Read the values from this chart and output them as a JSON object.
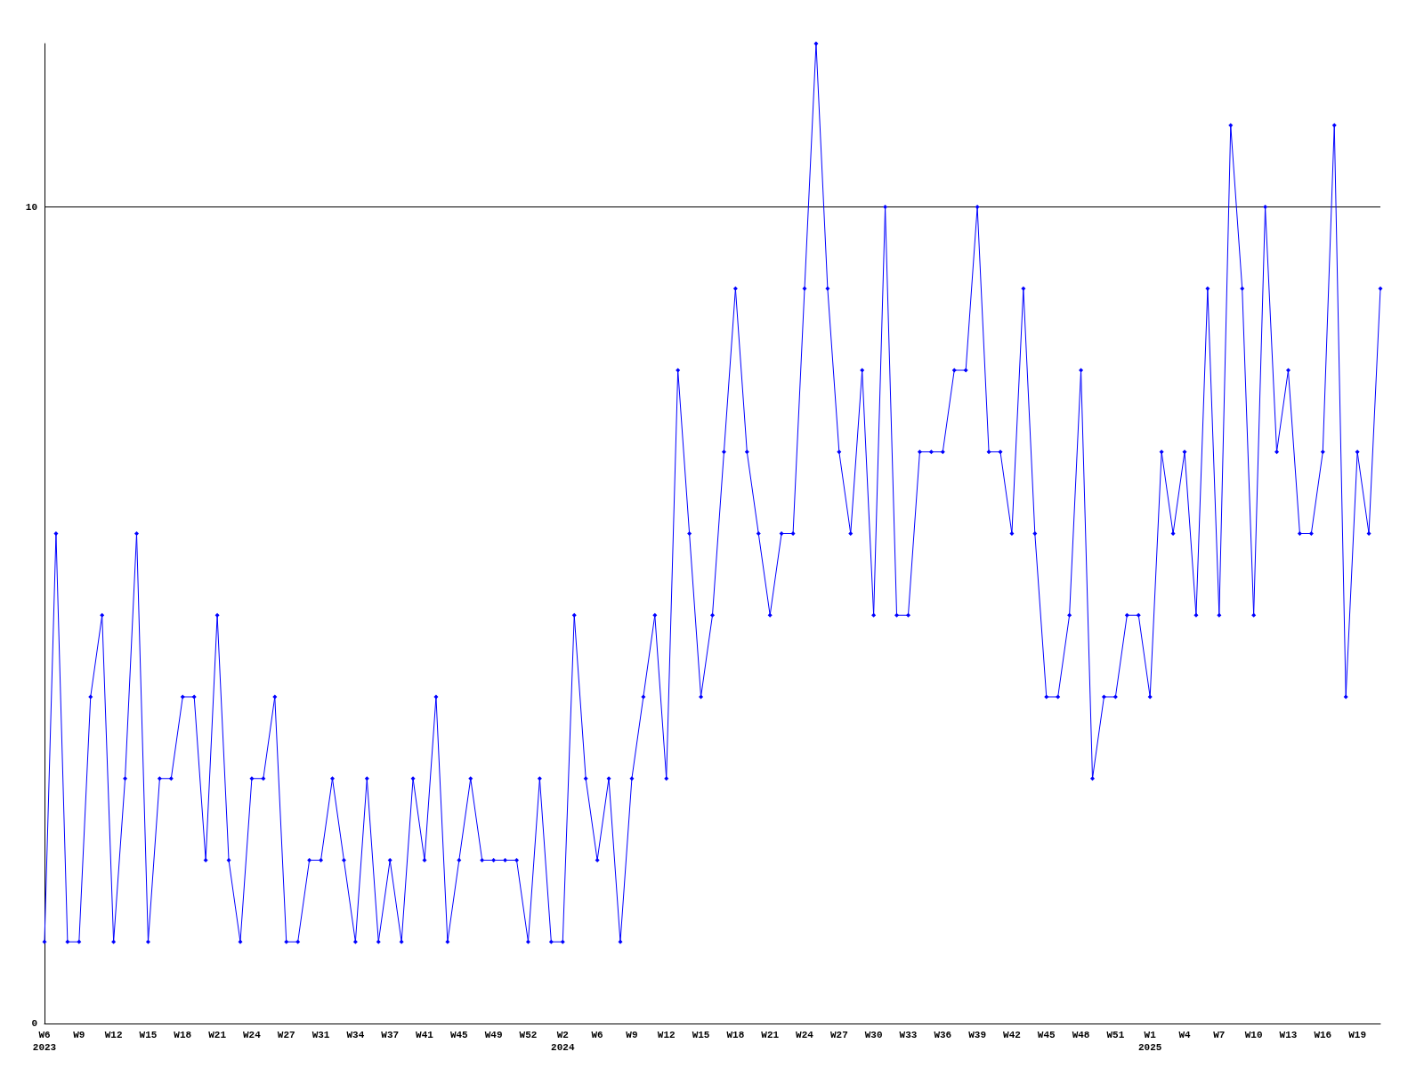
{
  "chart_data": {
    "type": "line",
    "categories": [
      "W6\n2023",
      null,
      null,
      "W9",
      null,
      null,
      "W12",
      null,
      null,
      "W15",
      null,
      null,
      "W18",
      null,
      null,
      "W21",
      null,
      null,
      "W24",
      null,
      null,
      "W27",
      null,
      null,
      "W31",
      null,
      null,
      "W34",
      null,
      null,
      "W37",
      null,
      null,
      "W41",
      null,
      null,
      "W45",
      null,
      null,
      "W49",
      null,
      null,
      "W52",
      null,
      null,
      "W2\n2024",
      null,
      null,
      "W6",
      null,
      null,
      "W9",
      null,
      null,
      "W12",
      null,
      null,
      "W15",
      null,
      null,
      "W18",
      null,
      null,
      "W21",
      null,
      null,
      "W24",
      null,
      null,
      "W27",
      null,
      null,
      "W30",
      null,
      null,
      "W33",
      null,
      null,
      "W36",
      null,
      null,
      "W39",
      null,
      null,
      "W42",
      null,
      null,
      "W45",
      null,
      null,
      "W48",
      null,
      null,
      "W51",
      null,
      null,
      "W1\n2025",
      null,
      null,
      "W4",
      null,
      null,
      "W7",
      null,
      null,
      "W10",
      null,
      null,
      "W13",
      null,
      null,
      "W16",
      null,
      null,
      "W19",
      null,
      null
    ],
    "series": [
      {
        "color": "#0000ff",
        "values": [
          1,
          6,
          1,
          1,
          4,
          5,
          1,
          3,
          6,
          1,
          3,
          3,
          4,
          4,
          2,
          5,
          2,
          1,
          3,
          3,
          4,
          1,
          1,
          2,
          2,
          3,
          2,
          1,
          3,
          1,
          2,
          1,
          3,
          2,
          4,
          1,
          2,
          3,
          2,
          2,
          2,
          2,
          1,
          3,
          1,
          1,
          5,
          3,
          2,
          3,
          1,
          3,
          4,
          5,
          3,
          8,
          6,
          4,
          5,
          7,
          9,
          7,
          6,
          5,
          6,
          6,
          9,
          12,
          9,
          7,
          6,
          8,
          5,
          10,
          5,
          5,
          7,
          7,
          7,
          8,
          8,
          10,
          7,
          7,
          6,
          9,
          6,
          4,
          4,
          5,
          8,
          3,
          4,
          4,
          5,
          5,
          4,
          7,
          6,
          7,
          5,
          9,
          5,
          11,
          9,
          5,
          10,
          7,
          8,
          6,
          6,
          7,
          11,
          4,
          7,
          6,
          9
        ]
      }
    ],
    "ylim": [
      0,
      12
    ],
    "yticks": [
      0,
      10
    ],
    "grid": "y",
    "marker": "diamond",
    "line_style": "solid"
  }
}
